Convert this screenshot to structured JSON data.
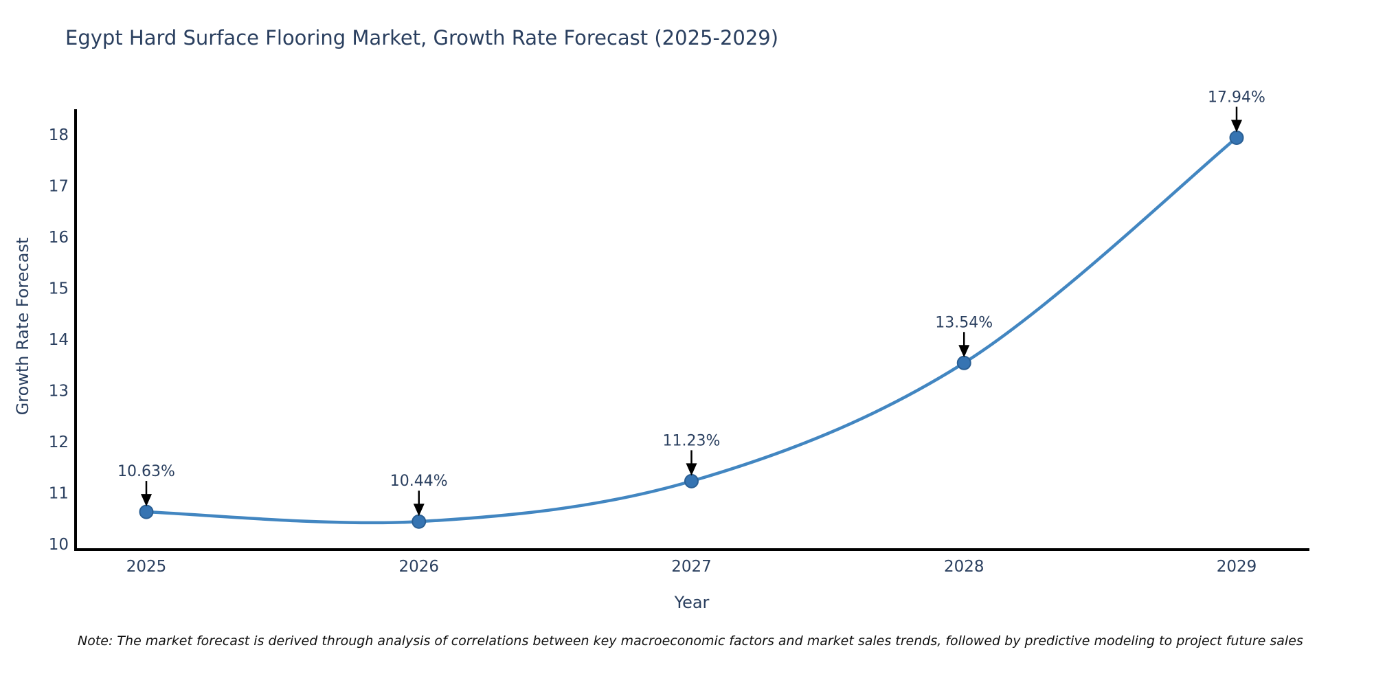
{
  "chart": {
    "note": "Note: The market forecast is derived through analysis of correlations between key macroeconomic factors and market sales trends, followed by predictive modeling to project future sales"
  },
  "chart_data": {
    "type": "line",
    "title": "Egypt Hard Surface Flooring Market, Growth Rate Forecast (2025-2029)",
    "xlabel": "Year",
    "ylabel": "Growth Rate Forecast",
    "x": [
      2025,
      2026,
      2027,
      2028,
      2029
    ],
    "series": [
      {
        "name": "Growth Rate Forecast",
        "values": [
          10.63,
          10.44,
          11.23,
          13.54,
          17.94
        ],
        "data_labels": [
          "10.63%",
          "10.44%",
          "11.23%",
          "13.54%",
          "17.94%"
        ]
      }
    ],
    "xticks": [
      "2025",
      "2026",
      "2027",
      "2028",
      "2029"
    ],
    "yticks": [
      "10",
      "11",
      "12",
      "13",
      "14",
      "15",
      "16",
      "17",
      "18"
    ],
    "ylim": [
      10,
      18
    ],
    "grid": false,
    "legend": "none",
    "line_shape": "spline",
    "colors": {
      "line": "#4286c1",
      "marker_fill": "#3674b2",
      "marker_edge": "#2a5f94",
      "axis_line": "#000000",
      "text": "#2a3f5f",
      "annotation_arrow": "#000000"
    }
  }
}
